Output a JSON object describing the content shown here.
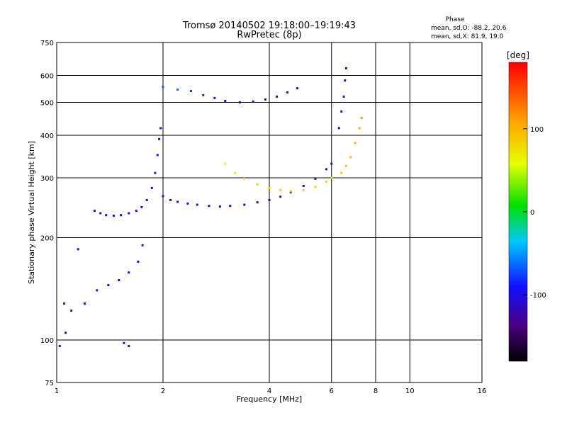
{
  "chart_data": {
    "type": "scatter",
    "title": "Tromsø 20140502 19:18:00–19:19:43",
    "subtitle": "RwPretec (8p)",
    "xlabel": "Frequency [MHz]",
    "ylabel": "Stationary phase Virtual Height [km]",
    "x_scale": "log",
    "y_scale": "log",
    "xlim": [
      1,
      16
    ],
    "ylim": [
      75,
      750
    ],
    "grid": true,
    "x_ticks": [
      1,
      2,
      4,
      6,
      8,
      10,
      16
    ],
    "x_tick_labels": [
      "1",
      "2",
      "4",
      "6",
      "8",
      "10",
      "16"
    ],
    "y_ticks": [
      75,
      100,
      200,
      300,
      400,
      500,
      600,
      750
    ],
    "y_tick_labels": [
      "75",
      "100",
      "200",
      "300",
      "400",
      "500",
      "600",
      "750"
    ],
    "stats": {
      "heading": "Phase",
      "line1": "mean, sd,O: -88.2, 20.6",
      "line2": "mean, sd,X: 81.9, 19.0"
    },
    "colorbar": {
      "unit": "[deg]",
      "range": [
        -180,
        180
      ],
      "ticks": [
        100,
        0,
        -100
      ],
      "tick_labels": [
        "100",
        "0",
        "-100"
      ]
    },
    "series": [
      {
        "values": [
          {
            "x": 1.28,
            "y": 240,
            "phase": -110
          },
          {
            "x": 1.33,
            "y": 236,
            "phase": -110
          },
          {
            "x": 1.38,
            "y": 233,
            "phase": -108
          },
          {
            "x": 1.45,
            "y": 232,
            "phase": -106
          },
          {
            "x": 1.52,
            "y": 233,
            "phase": -104
          },
          {
            "x": 1.6,
            "y": 236,
            "phase": -102
          },
          {
            "x": 1.68,
            "y": 240,
            "phase": -100
          },
          {
            "x": 1.74,
            "y": 246,
            "phase": -98
          },
          {
            "x": 1.8,
            "y": 258,
            "phase": -96
          },
          {
            "x": 1.86,
            "y": 280,
            "phase": -94
          },
          {
            "x": 1.9,
            "y": 310,
            "phase": -92
          },
          {
            "x": 1.93,
            "y": 350,
            "phase": -92
          },
          {
            "x": 1.95,
            "y": 390,
            "phase": -90
          },
          {
            "x": 1.97,
            "y": 420,
            "phase": -90
          },
          {
            "x": 2.0,
            "y": 265,
            "phase": -95
          },
          {
            "x": 2.1,
            "y": 258,
            "phase": -96
          },
          {
            "x": 2.2,
            "y": 255,
            "phase": -98
          },
          {
            "x": 2.35,
            "y": 252,
            "phase": -96
          },
          {
            "x": 2.5,
            "y": 250,
            "phase": -94
          },
          {
            "x": 2.7,
            "y": 248,
            "phase": -92
          },
          {
            "x": 2.9,
            "y": 247,
            "phase": -100
          },
          {
            "x": 3.1,
            "y": 248,
            "phase": -120
          },
          {
            "x": 3.4,
            "y": 250,
            "phase": -125
          },
          {
            "x": 3.7,
            "y": 254,
            "phase": -125
          },
          {
            "x": 4.0,
            "y": 258,
            "phase": -122
          },
          {
            "x": 4.3,
            "y": 264,
            "phase": -118
          },
          {
            "x": 4.6,
            "y": 272,
            "phase": -115
          },
          {
            "x": 5.0,
            "y": 284,
            "phase": -112
          },
          {
            "x": 5.4,
            "y": 298,
            "phase": -110
          },
          {
            "x": 5.8,
            "y": 318,
            "phase": -108
          },
          {
            "x": 6.0,
            "y": 330,
            "phase": -108
          },
          {
            "x": 6.3,
            "y": 420,
            "phase": -115
          },
          {
            "x": 6.4,
            "y": 470,
            "phase": -115
          },
          {
            "x": 6.5,
            "y": 520,
            "phase": -112
          },
          {
            "x": 6.55,
            "y": 580,
            "phase": -110
          },
          {
            "x": 6.6,
            "y": 630,
            "phase": -110
          },
          {
            "x": 1.05,
            "y": 128,
            "phase": -100
          },
          {
            "x": 1.1,
            "y": 122,
            "phase": -105
          },
          {
            "x": 1.2,
            "y": 128,
            "phase": -95
          },
          {
            "x": 1.3,
            "y": 140,
            "phase": -110
          },
          {
            "x": 1.4,
            "y": 145,
            "phase": -112
          },
          {
            "x": 1.5,
            "y": 150,
            "phase": -108
          },
          {
            "x": 1.6,
            "y": 158,
            "phase": -102
          },
          {
            "x": 1.7,
            "y": 170,
            "phase": -98
          },
          {
            "x": 1.75,
            "y": 190,
            "phase": -95
          },
          {
            "x": 1.02,
            "y": 96,
            "phase": -90
          },
          {
            "x": 1.06,
            "y": 105,
            "phase": -95
          },
          {
            "x": 1.55,
            "y": 98,
            "phase": -100
          },
          {
            "x": 1.6,
            "y": 96,
            "phase": -105
          },
          {
            "x": 1.15,
            "y": 185,
            "phase": -100
          },
          {
            "x": 2.0,
            "y": 555,
            "phase": -70
          },
          {
            "x": 2.2,
            "y": 545,
            "phase": -65
          },
          {
            "x": 2.4,
            "y": 540,
            "phase": -75
          },
          {
            "x": 2.6,
            "y": 525,
            "phase": -85
          },
          {
            "x": 2.8,
            "y": 515,
            "phase": -95
          },
          {
            "x": 3.0,
            "y": 505,
            "phase": -110
          },
          {
            "x": 3.3,
            "y": 500,
            "phase": -120
          },
          {
            "x": 3.6,
            "y": 503,
            "phase": -118
          },
          {
            "x": 3.9,
            "y": 510,
            "phase": -115
          },
          {
            "x": 4.2,
            "y": 520,
            "phase": -112
          },
          {
            "x": 4.5,
            "y": 535,
            "phase": -110
          },
          {
            "x": 4.8,
            "y": 550,
            "phase": -105
          }
        ]
      },
      {
        "values": [
          {
            "x": 3.0,
            "y": 330,
            "phase": 65
          },
          {
            "x": 3.2,
            "y": 310,
            "phase": 70
          },
          {
            "x": 3.4,
            "y": 298,
            "phase": 75
          },
          {
            "x": 3.7,
            "y": 287,
            "phase": 80
          },
          {
            "x": 4.0,
            "y": 280,
            "phase": 82
          },
          {
            "x": 4.3,
            "y": 276,
            "phase": 85
          },
          {
            "x": 4.6,
            "y": 274,
            "phase": 88
          },
          {
            "x": 5.0,
            "y": 276,
            "phase": 85
          },
          {
            "x": 5.4,
            "y": 282,
            "phase": 80
          },
          {
            "x": 5.8,
            "y": 292,
            "phase": 78
          },
          {
            "x": 6.0,
            "y": 300,
            "phase": 75
          },
          {
            "x": 6.4,
            "y": 310,
            "phase": 90
          },
          {
            "x": 6.6,
            "y": 325,
            "phase": 92
          },
          {
            "x": 6.8,
            "y": 345,
            "phase": 95
          },
          {
            "x": 7.0,
            "y": 380,
            "phase": 100
          },
          {
            "x": 7.2,
            "y": 420,
            "phase": 105
          },
          {
            "x": 7.3,
            "y": 450,
            "phase": 110
          }
        ]
      }
    ]
  }
}
